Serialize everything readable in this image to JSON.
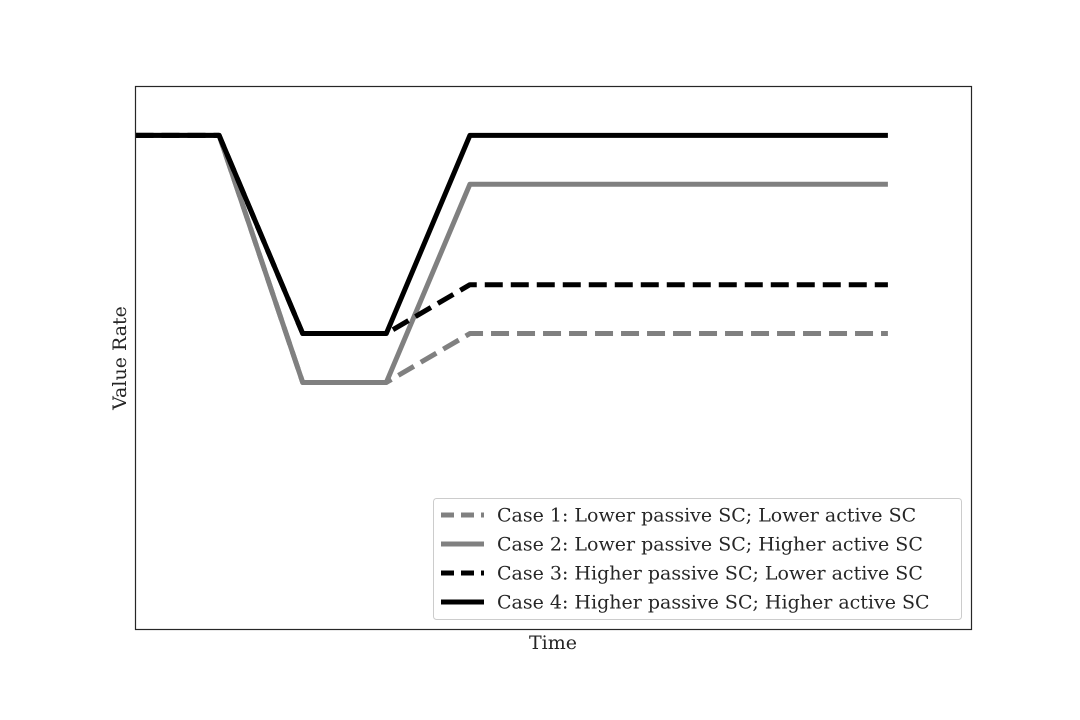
{
  "chart_data": {
    "type": "line",
    "title": "",
    "xlabel": "Time",
    "ylabel": "Value Rate",
    "x_ticks_shown": false,
    "y_ticks_shown": false,
    "grid": false,
    "xlim": [
      0,
      10
    ],
    "ylim": [
      0,
      10
    ],
    "legend_position": "lower-right",
    "series": [
      {
        "name": "Case 1: Lower passive SC; Lower active SC",
        "color": "#808080",
        "line_style": "dashed",
        "x": [
          0,
          1,
          2,
          3,
          4,
          9
        ],
        "y": [
          9.1,
          9.1,
          4.55,
          4.55,
          5.45,
          5.45
        ]
      },
      {
        "name": "Case 2: Lower passive SC; Higher active SC",
        "color": "#808080",
        "line_style": "solid",
        "x": [
          0,
          1,
          2,
          3,
          4,
          9
        ],
        "y": [
          9.1,
          9.1,
          4.55,
          4.55,
          8.2,
          8.2
        ]
      },
      {
        "name": "Case 3: Higher passive SC; Lower active SC",
        "color": "#000000",
        "line_style": "dashed",
        "x": [
          0,
          1,
          2,
          3,
          4,
          9
        ],
        "y": [
          9.1,
          9.1,
          5.45,
          5.45,
          6.35,
          6.35
        ]
      },
      {
        "name": "Case 4: Higher passive SC; Higher active SC",
        "color": "#000000",
        "line_style": "solid",
        "x": [
          0,
          1,
          2,
          3,
          4,
          9
        ],
        "y": [
          9.1,
          9.1,
          5.45,
          5.45,
          9.1,
          9.1
        ]
      }
    ]
  }
}
